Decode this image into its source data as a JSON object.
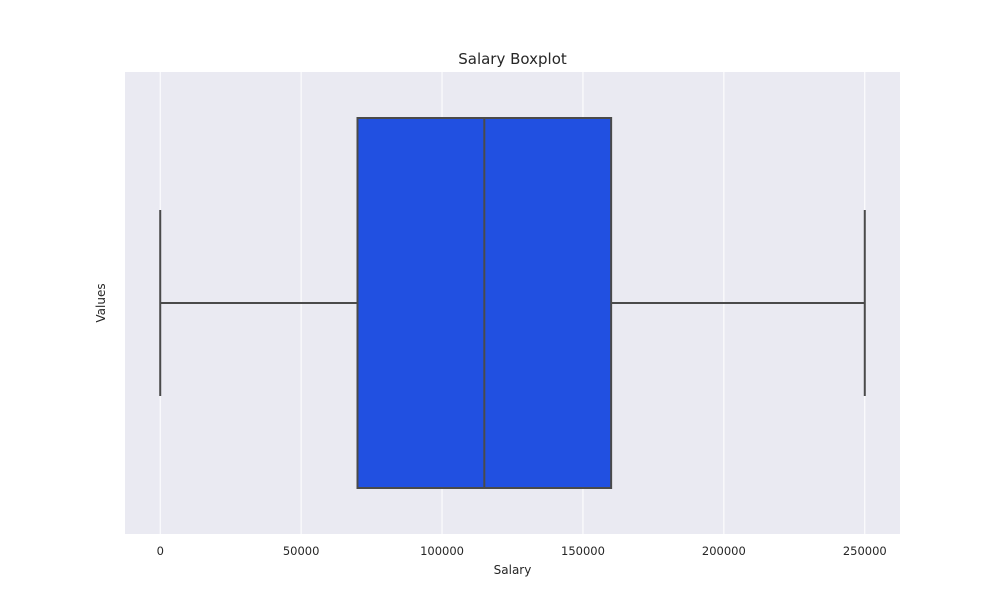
{
  "chart_data": {
    "type": "boxplot",
    "title": "Salary Boxplot",
    "xlabel": "Salary",
    "ylabel": "Values",
    "orientation": "horizontal",
    "xlim": [
      -12500,
      262500
    ],
    "xticks": [
      0,
      50000,
      100000,
      150000,
      200000,
      250000
    ],
    "xtick_labels": [
      "0",
      "50000",
      "100000",
      "150000",
      "200000",
      "250000"
    ],
    "grid": true,
    "box": {
      "whisker_low": 0,
      "q1": 70000,
      "median": 115000,
      "q3": 160000,
      "whisker_high": 250000
    },
    "colors": {
      "plot_background": "#eaeaf2",
      "grid": "#ffffff",
      "box_fill": "#2150e1",
      "line": "#4a4a4a"
    }
  }
}
